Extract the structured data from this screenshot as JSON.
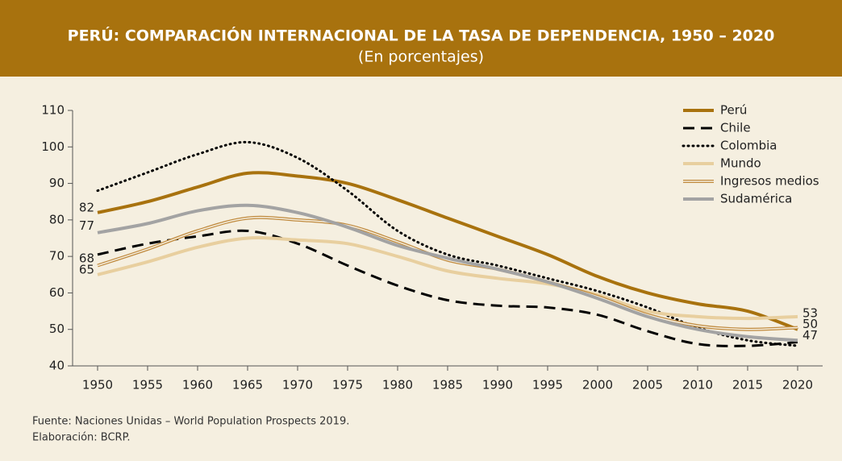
{
  "header": {
    "title": "PERÚ: COMPARACIÓN INTERNACIONAL DE LA TASA DE DEPENDENCIA, 1950 – 2020",
    "subtitle": "(En porcentajes)"
  },
  "chart_data": {
    "type": "line",
    "x": [
      1950,
      1955,
      1960,
      1965,
      1970,
      1975,
      1980,
      1985,
      1990,
      1995,
      2000,
      2005,
      2010,
      2015,
      2020
    ],
    "xlim": [
      1947.5,
      2022.5
    ],
    "xticks": [
      1950,
      1955,
      1960,
      1965,
      1970,
      1975,
      1980,
      1985,
      1990,
      1995,
      2000,
      2005,
      2010,
      2015,
      2020
    ],
    "ylim": [
      40,
      110
    ],
    "yticks": [
      40,
      50,
      60,
      70,
      80,
      90,
      100,
      110
    ],
    "legend": "top-right",
    "series": [
      {
        "name": "Perú",
        "color": "#a8720e",
        "style": "solid",
        "values": [
          82,
          85,
          89,
          92.8,
          92,
          90,
          85.5,
          80.5,
          75.5,
          70.5,
          64.5,
          60,
          57,
          55,
          50
        ]
      },
      {
        "name": "Chile",
        "color": "#000000",
        "style": "dashed",
        "values": [
          70.5,
          73.5,
          75.5,
          77,
          73.5,
          67.5,
          62,
          58,
          56.5,
          56,
          54,
          49.5,
          46,
          45.5,
          46.5
        ]
      },
      {
        "name": "Colombia",
        "color": "#000000",
        "style": "dotted",
        "values": [
          88,
          93,
          98,
          101.3,
          97,
          88,
          77,
          70.5,
          67.5,
          64,
          60.5,
          56,
          50.5,
          47,
          45.5
        ]
      },
      {
        "name": "Mundo",
        "color": "#e8cf9f",
        "style": "solid",
        "values": [
          65,
          68.5,
          72.5,
          75,
          74.5,
          73.5,
          70,
          66,
          64,
          62.5,
          59.5,
          55,
          53.5,
          53,
          53.5
        ]
      },
      {
        "name": "Ingresos medios",
        "color": "#c08a3e",
        "style": "double",
        "values": [
          67.5,
          72,
          77,
          80.5,
          80,
          78.5,
          74,
          69,
          66.5,
          63,
          59,
          54,
          51,
          50,
          50.5
        ]
      },
      {
        "name": "Sudamérica",
        "color": "#a3a3a3",
        "style": "solid",
        "values": [
          76.5,
          79,
          82.5,
          84,
          82,
          78,
          73,
          69.5,
          66.5,
          63,
          58.5,
          53.5,
          50,
          48,
          47
        ]
      }
    ],
    "annotations": [
      {
        "text": "82",
        "x": 1950,
        "y": 82
      },
      {
        "text": "77",
        "x": 1950,
        "y": 77
      },
      {
        "text": "68",
        "x": 1950,
        "y": 68
      },
      {
        "text": "65",
        "x": 1950,
        "y": 65
      },
      {
        "text": "53",
        "x": 2020,
        "y": 53
      },
      {
        "text": "50",
        "x": 2020,
        "y": 50
      },
      {
        "text": "47",
        "x": 2020,
        "y": 47
      }
    ]
  },
  "footer": {
    "source": "Fuente: Naciones Unidas – World Population Prospects 2019.",
    "credit": "Elaboración: BCRP."
  }
}
